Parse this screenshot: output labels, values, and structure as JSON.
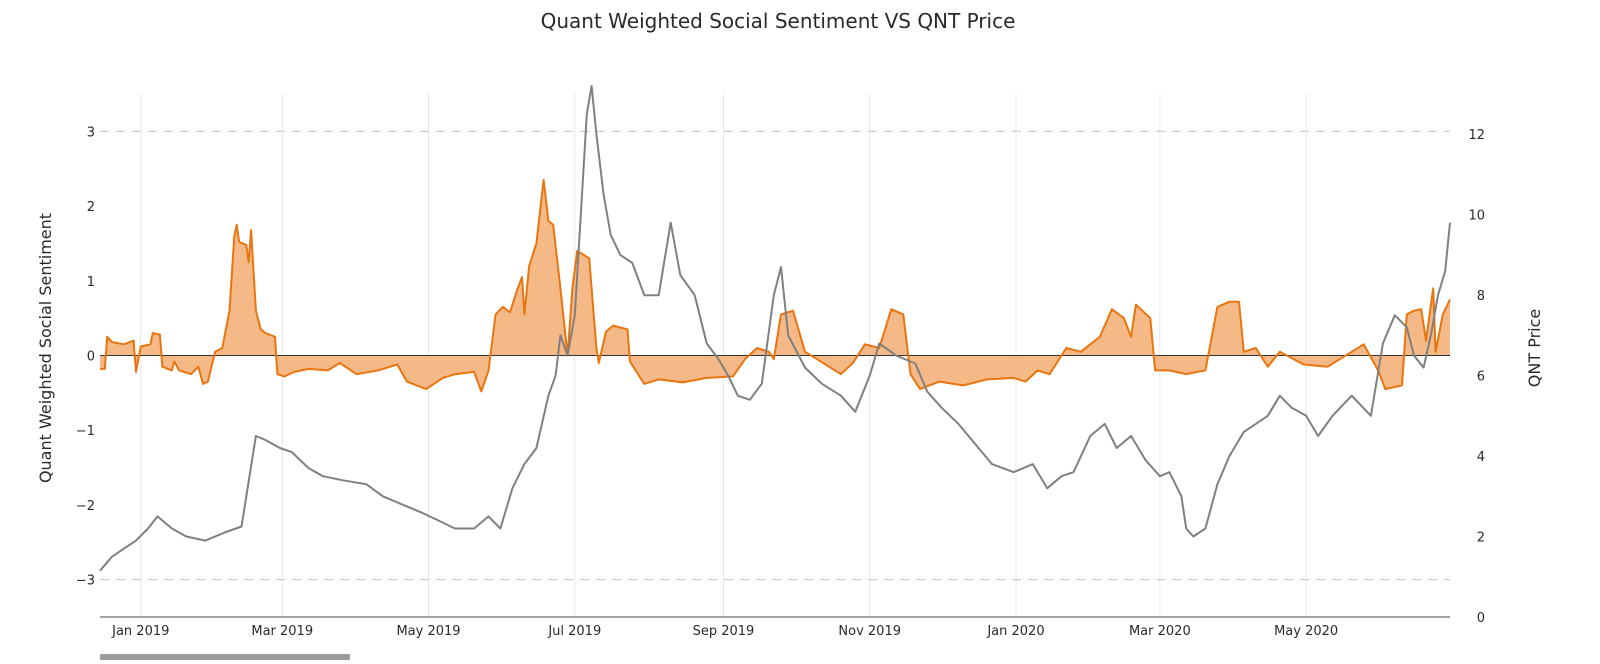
{
  "chart_data": {
    "type": "line",
    "title": "Quant Weighted Social Sentiment VS QNT Price",
    "y_left_label": "Quant Weighted Social Sentiment",
    "y_right_label": "QNT Price",
    "x_range": [
      "2018-12-15",
      "2020-06-30"
    ],
    "y_left_range": [
      -3.5,
      3.5
    ],
    "y_right_range": [
      0,
      13
    ],
    "y_left_ticks": [
      -3,
      -2,
      -1,
      0,
      1,
      2,
      3
    ],
    "y_left_tick_labels": [
      "−3",
      "−2",
      "−1",
      "0",
      "1",
      "2",
      "3"
    ],
    "y_right_ticks": [
      0,
      2,
      4,
      6,
      8,
      10,
      12
    ],
    "y_right_tick_labels": [
      "0",
      "2",
      "4",
      "6",
      "8",
      "10",
      "12"
    ],
    "x_ticks": [
      "2019-01-01",
      "2019-03-01",
      "2019-05-01",
      "2019-07-01",
      "2019-09-01",
      "2019-11-01",
      "2020-01-01",
      "2020-03-01",
      "2020-05-01"
    ],
    "x_tick_labels": [
      "Jan 2019",
      "Mar 2019",
      "May 2019",
      "Jul 2019",
      "Sep 2019",
      "Nov 2019",
      "Jan 2020",
      "Mar 2020",
      "May 2020"
    ],
    "colors": {
      "sentiment_line": "#e8750f",
      "sentiment_fill": "#f5b987",
      "price_line": "#808080",
      "grid": "#e6e6e6",
      "dashed": "#cfcfcf",
      "zero": "#333333"
    },
    "series": [
      {
        "name": "Quant Weighted Social Sentiment",
        "axis": "left",
        "style": "area-to-zero",
        "points": [
          [
            "2018-12-15",
            -0.18
          ],
          [
            "2018-12-17",
            -0.18
          ],
          [
            "2018-12-18",
            0.25
          ],
          [
            "2018-12-20",
            0.18
          ],
          [
            "2018-12-25",
            0.15
          ],
          [
            "2018-12-29",
            0.2
          ],
          [
            "2018-12-30",
            -0.22
          ],
          [
            "2019-01-01",
            0.12
          ],
          [
            "2019-01-05",
            0.15
          ],
          [
            "2019-01-06",
            0.3
          ],
          [
            "2019-01-09",
            0.28
          ],
          [
            "2019-01-10",
            -0.15
          ],
          [
            "2019-01-14",
            -0.2
          ],
          [
            "2019-01-15",
            -0.08
          ],
          [
            "2019-01-17",
            -0.2
          ],
          [
            "2019-01-22",
            -0.25
          ],
          [
            "2019-01-25",
            -0.15
          ],
          [
            "2019-01-27",
            -0.38
          ],
          [
            "2019-01-29",
            -0.35
          ],
          [
            "2019-02-01",
            0.05
          ],
          [
            "2019-02-04",
            0.1
          ],
          [
            "2019-02-07",
            0.6
          ],
          [
            "2019-02-09",
            1.6
          ],
          [
            "2019-02-10",
            1.75
          ],
          [
            "2019-02-11",
            1.52
          ],
          [
            "2019-02-14",
            1.48
          ],
          [
            "2019-02-15",
            1.25
          ],
          [
            "2019-02-16",
            1.68
          ],
          [
            "2019-02-18",
            0.6
          ],
          [
            "2019-02-20",
            0.35
          ],
          [
            "2019-02-22",
            0.3
          ],
          [
            "2019-02-26",
            0.25
          ],
          [
            "2019-02-27",
            -0.25
          ],
          [
            "2019-03-02",
            -0.28
          ],
          [
            "2019-03-06",
            -0.22
          ],
          [
            "2019-03-12",
            -0.18
          ],
          [
            "2019-03-20",
            -0.2
          ],
          [
            "2019-03-25",
            -0.1
          ],
          [
            "2019-04-01",
            -0.25
          ],
          [
            "2019-04-10",
            -0.2
          ],
          [
            "2019-04-18",
            -0.12
          ],
          [
            "2019-04-22",
            -0.35
          ],
          [
            "2019-04-30",
            -0.45
          ],
          [
            "2019-05-07",
            -0.3
          ],
          [
            "2019-05-12",
            -0.25
          ],
          [
            "2019-05-20",
            -0.22
          ],
          [
            "2019-05-23",
            -0.48
          ],
          [
            "2019-05-26",
            -0.2
          ],
          [
            "2019-05-29",
            0.55
          ],
          [
            "2019-06-01",
            0.65
          ],
          [
            "2019-06-04",
            0.58
          ],
          [
            "2019-06-07",
            0.88
          ],
          [
            "2019-06-09",
            1.05
          ],
          [
            "2019-06-10",
            0.55
          ],
          [
            "2019-06-12",
            1.2
          ],
          [
            "2019-06-15",
            1.5
          ],
          [
            "2019-06-18",
            2.35
          ],
          [
            "2019-06-20",
            1.8
          ],
          [
            "2019-06-22",
            1.75
          ],
          [
            "2019-06-25",
            0.9
          ],
          [
            "2019-06-28",
            0.0
          ],
          [
            "2019-06-30",
            0.9
          ],
          [
            "2019-07-02",
            1.4
          ],
          [
            "2019-07-07",
            1.3
          ],
          [
            "2019-07-10",
            0.1
          ],
          [
            "2019-07-11",
            -0.1
          ],
          [
            "2019-07-14",
            0.32
          ],
          [
            "2019-07-17",
            0.4
          ],
          [
            "2019-07-23",
            0.35
          ],
          [
            "2019-07-24",
            -0.08
          ],
          [
            "2019-07-30",
            -0.38
          ],
          [
            "2019-08-05",
            -0.32
          ],
          [
            "2019-08-15",
            -0.36
          ],
          [
            "2019-08-25",
            -0.3
          ],
          [
            "2019-09-05",
            -0.28
          ],
          [
            "2019-09-10",
            -0.05
          ],
          [
            "2019-09-15",
            0.1
          ],
          [
            "2019-09-20",
            0.05
          ],
          [
            "2019-09-22",
            -0.05
          ],
          [
            "2019-09-25",
            0.55
          ],
          [
            "2019-09-30",
            0.6
          ],
          [
            "2019-10-05",
            0.05
          ],
          [
            "2019-10-10",
            -0.05
          ],
          [
            "2019-10-15",
            -0.15
          ],
          [
            "2019-10-20",
            -0.25
          ],
          [
            "2019-10-25",
            -0.1
          ],
          [
            "2019-10-30",
            0.15
          ],
          [
            "2019-11-05",
            0.1
          ],
          [
            "2019-11-10",
            0.62
          ],
          [
            "2019-11-15",
            0.55
          ],
          [
            "2019-11-18",
            -0.25
          ],
          [
            "2019-11-22",
            -0.45
          ],
          [
            "2019-11-30",
            -0.35
          ],
          [
            "2019-12-10",
            -0.4
          ],
          [
            "2019-12-20",
            -0.32
          ],
          [
            "2019-12-31",
            -0.3
          ],
          [
            "2020-01-05",
            -0.35
          ],
          [
            "2020-01-10",
            -0.2
          ],
          [
            "2020-01-15",
            -0.25
          ],
          [
            "2020-01-22",
            0.1
          ],
          [
            "2020-01-28",
            0.05
          ],
          [
            "2020-02-05",
            0.25
          ],
          [
            "2020-02-10",
            0.62
          ],
          [
            "2020-02-15",
            0.5
          ],
          [
            "2020-02-18",
            0.25
          ],
          [
            "2020-02-20",
            0.68
          ],
          [
            "2020-02-26",
            0.5
          ],
          [
            "2020-02-28",
            -0.2
          ],
          [
            "2020-03-05",
            -0.2
          ],
          [
            "2020-03-12",
            -0.25
          ],
          [
            "2020-03-20",
            -0.2
          ],
          [
            "2020-03-25",
            0.65
          ],
          [
            "2020-03-30",
            0.72
          ],
          [
            "2020-04-03",
            0.72
          ],
          [
            "2020-04-05",
            0.05
          ],
          [
            "2020-04-10",
            0.1
          ],
          [
            "2020-04-15",
            -0.15
          ],
          [
            "2020-04-20",
            0.05
          ],
          [
            "2020-04-30",
            -0.12
          ],
          [
            "2020-05-10",
            -0.15
          ],
          [
            "2020-05-20",
            0.05
          ],
          [
            "2020-05-25",
            0.15
          ],
          [
            "2020-05-31",
            -0.2
          ],
          [
            "2020-06-03",
            -0.45
          ],
          [
            "2020-06-10",
            -0.4
          ],
          [
            "2020-06-12",
            0.55
          ],
          [
            "2020-06-15",
            0.6
          ],
          [
            "2020-06-18",
            0.62
          ],
          [
            "2020-06-20",
            0.2
          ],
          [
            "2020-06-23",
            0.9
          ],
          [
            "2020-06-24",
            0.05
          ],
          [
            "2020-06-27",
            0.55
          ],
          [
            "2020-06-30",
            0.75
          ]
        ]
      },
      {
        "name": "QNT Price",
        "axis": "right",
        "style": "line",
        "points": [
          [
            "2018-12-15",
            1.15
          ],
          [
            "2018-12-20",
            1.5
          ],
          [
            "2018-12-25",
            1.7
          ],
          [
            "2018-12-30",
            1.9
          ],
          [
            "2019-01-04",
            2.2
          ],
          [
            "2019-01-08",
            2.5
          ],
          [
            "2019-01-14",
            2.2
          ],
          [
            "2019-01-20",
            2.0
          ],
          [
            "2019-01-28",
            1.9
          ],
          [
            "2019-02-05",
            2.1
          ],
          [
            "2019-02-12",
            2.25
          ],
          [
            "2019-02-18",
            4.5
          ],
          [
            "2019-02-22",
            4.4
          ],
          [
            "2019-02-28",
            4.2
          ],
          [
            "2019-03-05",
            4.1
          ],
          [
            "2019-03-12",
            3.7
          ],
          [
            "2019-03-18",
            3.5
          ],
          [
            "2019-03-26",
            3.4
          ],
          [
            "2019-04-05",
            3.3
          ],
          [
            "2019-04-12",
            3.0
          ],
          [
            "2019-04-20",
            2.8
          ],
          [
            "2019-04-28",
            2.6
          ],
          [
            "2019-05-05",
            2.4
          ],
          [
            "2019-05-12",
            2.2
          ],
          [
            "2019-05-20",
            2.2
          ],
          [
            "2019-05-26",
            2.5
          ],
          [
            "2019-05-31",
            2.2
          ],
          [
            "2019-06-05",
            3.2
          ],
          [
            "2019-06-10",
            3.8
          ],
          [
            "2019-06-15",
            4.2
          ],
          [
            "2019-06-20",
            5.5
          ],
          [
            "2019-06-23",
            6.0
          ],
          [
            "2019-06-25",
            7.0
          ],
          [
            "2019-06-28",
            6.5
          ],
          [
            "2019-07-01",
            7.5
          ],
          [
            "2019-07-04",
            10.5
          ],
          [
            "2019-07-06",
            12.5
          ],
          [
            "2019-07-08",
            13.2
          ],
          [
            "2019-07-10",
            12.0
          ],
          [
            "2019-07-13",
            10.5
          ],
          [
            "2019-07-16",
            9.5
          ],
          [
            "2019-07-20",
            9.0
          ],
          [
            "2019-07-25",
            8.8
          ],
          [
            "2019-07-30",
            8.0
          ],
          [
            "2019-08-05",
            8.0
          ],
          [
            "2019-08-10",
            9.8
          ],
          [
            "2019-08-14",
            8.5
          ],
          [
            "2019-08-20",
            8.0
          ],
          [
            "2019-08-25",
            6.8
          ],
          [
            "2019-08-30",
            6.4
          ],
          [
            "2019-09-03",
            6.0
          ],
          [
            "2019-09-07",
            5.5
          ],
          [
            "2019-09-12",
            5.4
          ],
          [
            "2019-09-17",
            5.8
          ],
          [
            "2019-09-22",
            8.0
          ],
          [
            "2019-09-25",
            8.7
          ],
          [
            "2019-09-28",
            7.0
          ],
          [
            "2019-10-05",
            6.2
          ],
          [
            "2019-10-12",
            5.8
          ],
          [
            "2019-10-20",
            5.5
          ],
          [
            "2019-10-26",
            5.1
          ],
          [
            "2019-11-01",
            6.0
          ],
          [
            "2019-11-05",
            6.8
          ],
          [
            "2019-11-12",
            6.5
          ],
          [
            "2019-11-20",
            6.3
          ],
          [
            "2019-11-25",
            5.6
          ],
          [
            "2019-12-01",
            5.2
          ],
          [
            "2019-12-08",
            4.8
          ],
          [
            "2019-12-15",
            4.3
          ],
          [
            "2019-12-22",
            3.8
          ],
          [
            "2019-12-31",
            3.6
          ],
          [
            "2020-01-08",
            3.8
          ],
          [
            "2020-01-14",
            3.2
          ],
          [
            "2020-01-20",
            3.5
          ],
          [
            "2020-01-25",
            3.6
          ],
          [
            "2020-02-01",
            4.5
          ],
          [
            "2020-02-07",
            4.8
          ],
          [
            "2020-02-12",
            4.2
          ],
          [
            "2020-02-18",
            4.5
          ],
          [
            "2020-02-24",
            3.9
          ],
          [
            "2020-03-01",
            3.5
          ],
          [
            "2020-03-05",
            3.6
          ],
          [
            "2020-03-10",
            3.0
          ],
          [
            "2020-03-12",
            2.2
          ],
          [
            "2020-03-15",
            2.0
          ],
          [
            "2020-03-20",
            2.2
          ],
          [
            "2020-03-25",
            3.3
          ],
          [
            "2020-03-30",
            4.0
          ],
          [
            "2020-04-05",
            4.6
          ],
          [
            "2020-04-10",
            4.8
          ],
          [
            "2020-04-15",
            5.0
          ],
          [
            "2020-04-20",
            5.5
          ],
          [
            "2020-04-25",
            5.2
          ],
          [
            "2020-05-01",
            5.0
          ],
          [
            "2020-05-06",
            4.5
          ],
          [
            "2020-05-12",
            5.0
          ],
          [
            "2020-05-20",
            5.5
          ],
          [
            "2020-05-28",
            5.0
          ],
          [
            "2020-06-02",
            6.8
          ],
          [
            "2020-06-07",
            7.5
          ],
          [
            "2020-06-12",
            7.2
          ],
          [
            "2020-06-15",
            6.5
          ],
          [
            "2020-06-19",
            6.2
          ],
          [
            "2020-06-22",
            7.0
          ],
          [
            "2020-06-25",
            8.0
          ],
          [
            "2020-06-28",
            8.6
          ],
          [
            "2020-06-30",
            9.8
          ]
        ]
      }
    ]
  }
}
